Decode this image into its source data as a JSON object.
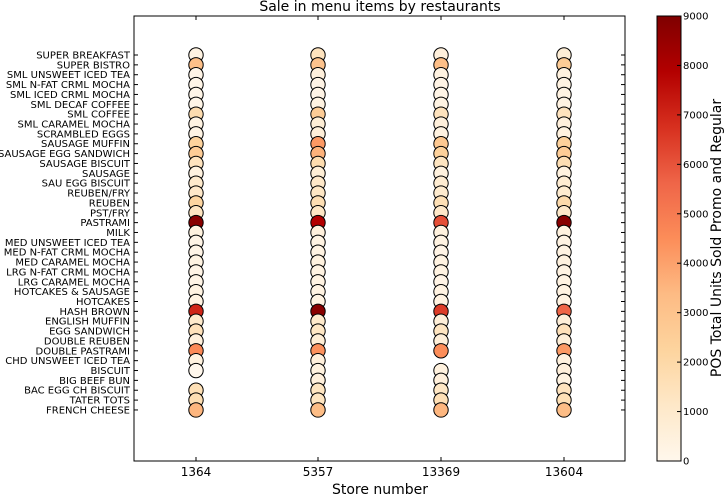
{
  "chart_data": {
    "type": "scatter",
    "title": "Sale in menu items by restaurants",
    "xlabel": "Store number",
    "colorbar_label": "POS Total Units Sold  Promo and Regular",
    "colormap": "OrRd",
    "colorbar_range": [
      0,
      9000
    ],
    "colorbar_ticks": [
      "0",
      "1000",
      "2000",
      "3000",
      "4000",
      "5000",
      "6000",
      "7000",
      "8000",
      "9000"
    ],
    "grid": false,
    "x_categories": [
      "1364",
      "5357",
      "13369",
      "13604"
    ],
    "y_categories": [
      "SUPER BREAKFAST",
      "SUPER BISTRO",
      "SML UNSWEET ICED TEA",
      "SML N-FAT CRML MOCHA",
      "SML ICED CRML MOCHA",
      "SML DECAF COFFEE",
      "SML COFFEE",
      "SML CARAMEL MOCHA",
      "SCRAMBLED EGGS",
      "SAUSAGE MUFFIN",
      "SAUSAGE EGG SANDWICH",
      "SAUSAGE BISCUIT",
      "SAUSAGE",
      "SAU EGG BISCUIT",
      "REUBEN/FRY",
      "REUBEN",
      "PST/FRY",
      "PASTRAMI",
      "MILK",
      "MED UNSWEET ICED TEA",
      "MED N-FAT CRML MOCHA",
      "MED CARAMEL MOCHA",
      "LRG N-FAT CRML MOCHA",
      "LRG CARAMEL MOCHA",
      "HOTCAKES & SAUSAGE",
      "HOTCAKES",
      "HASH BROWN",
      "ENGLISH MUFFIN",
      "EGG SANDWICH",
      "DOUBLE REUBEN",
      "DOUBLE PASTRAMI",
      "CHD UNSWEET ICED TEA",
      "BISCUIT",
      "BIG BEEF BUN",
      "BAC EGG CH BISCUIT",
      "TATER TOTS",
      "FRENCH CHEESE"
    ],
    "series": [
      {
        "store": "1364",
        "values": [
          300,
          3200,
          200,
          150,
          150,
          150,
          1800,
          300,
          250,
          2300,
          2600,
          1400,
          400,
          1000,
          1100,
          2200,
          1300,
          8800,
          400,
          200,
          200,
          300,
          200,
          200,
          300,
          300,
          7000,
          1000,
          1500,
          500,
          4600,
          400,
          0,
          null,
          1600,
          1700,
          3500
        ]
      },
      {
        "store": "5357",
        "values": [
          1400,
          3000,
          500,
          200,
          200,
          300,
          2600,
          700,
          600,
          4200,
          3600,
          1800,
          700,
          1100,
          1200,
          1700,
          1200,
          7900,
          500,
          300,
          300,
          400,
          300,
          300,
          300,
          300,
          8800,
          1000,
          1200,
          700,
          4400,
          500,
          400,
          500,
          1300,
          1300,
          3300
        ]
      },
      {
        "store": "13369",
        "values": [
          500,
          3200,
          300,
          200,
          150,
          250,
          1400,
          500,
          300,
          2800,
          2400,
          1300,
          400,
          800,
          900,
          1600,
          1100,
          6100,
          400,
          300,
          200,
          300,
          300,
          200,
          300,
          300,
          6500,
          600,
          1300,
          600,
          4500,
          null,
          400,
          500,
          1200,
          1600,
          3500
        ]
      },
      {
        "store": "13604",
        "values": [
          700,
          2600,
          400,
          300,
          300,
          300,
          1400,
          500,
          400,
          2400,
          2600,
          1700,
          400,
          800,
          900,
          1900,
          1100,
          8800,
          400,
          300,
          300,
          400,
          300,
          300,
          300,
          300,
          5600,
          600,
          1500,
          600,
          4200,
          400,
          500,
          300,
          1400,
          1600,
          3300
        ]
      }
    ]
  }
}
